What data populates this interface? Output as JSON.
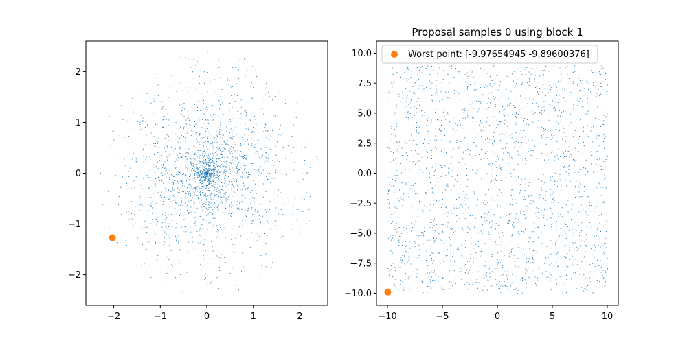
{
  "chart_data": [
    {
      "type": "scatter",
      "title": "",
      "xlabel": "",
      "ylabel": "",
      "xlim": [
        -2.6,
        2.6
      ],
      "ylim": [
        -2.6,
        2.6
      ],
      "xticks": [
        -2,
        -1,
        0,
        1,
        2
      ],
      "yticks": [
        -2,
        -1,
        0,
        1,
        2
      ],
      "tick_labels_x": [
        "−2",
        "−1",
        "0",
        "1",
        "2"
      ],
      "tick_labels_y": [
        "−2",
        "−1",
        "0",
        "1",
        "2"
      ],
      "grid": false,
      "series": [
        {
          "kind": "samples",
          "color": "#1f77b4",
          "distribution": "disc",
          "center": [
            0,
            0
          ],
          "radius": 2.4,
          "count": 2500
        },
        {
          "kind": "highlight",
          "color": "#ff7f0e",
          "points": [
            [
              -2.03,
              -1.27
            ]
          ]
        }
      ]
    },
    {
      "type": "scatter",
      "title": "Proposal samples 0 using block 1",
      "xlabel": "",
      "ylabel": "",
      "xlim": [
        -11,
        11
      ],
      "ylim": [
        -11,
        11
      ],
      "xticks": [
        -10,
        -5,
        0,
        5,
        10
      ],
      "yticks": [
        -10,
        -7.5,
        -5,
        -2.5,
        0,
        2.5,
        5,
        7.5,
        10
      ],
      "tick_labels_x": [
        "−10",
        "−5",
        "0",
        "5",
        "10"
      ],
      "tick_labels_y": [
        "−10.0",
        "−7.5",
        "−5.0",
        "−2.5",
        "0.0",
        "2.5",
        "5.0",
        "7.5",
        "10.0"
      ],
      "grid": false,
      "legend": {
        "placement": "top-left",
        "entries": [
          {
            "label": "Worst point: [-9.97654945 -9.89600376]",
            "color": "#ff7f0e"
          }
        ]
      },
      "series": [
        {
          "kind": "samples",
          "color": "#1f77b4",
          "distribution": "square",
          "xrange": [
            -10,
            10
          ],
          "yrange": [
            -10,
            9
          ],
          "count": 2600
        },
        {
          "kind": "highlight",
          "name": "Worst point: [-9.97654945 -9.89600376]",
          "color": "#ff7f0e",
          "points": [
            [
              -9.97654945,
              -9.89600376
            ]
          ]
        }
      ]
    }
  ]
}
